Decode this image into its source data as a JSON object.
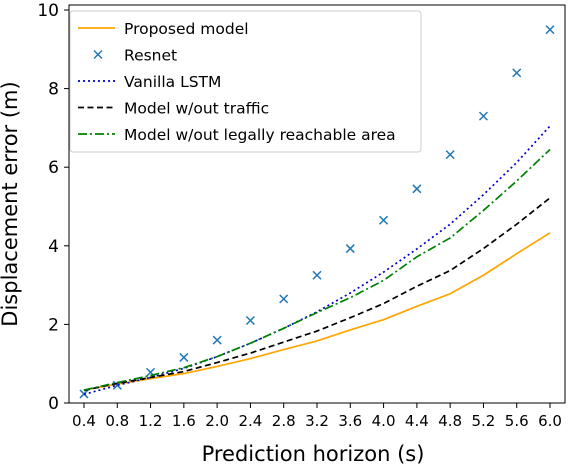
{
  "chart_data": {
    "type": "line",
    "xlabel": "Prediction horizon (s)",
    "ylabel": "Displacement error (m)",
    "x": [
      0.4,
      0.8,
      1.2,
      1.6,
      2.0,
      2.4,
      2.8,
      3.2,
      3.6,
      4.0,
      4.4,
      4.8,
      5.2,
      5.6,
      6.0
    ],
    "x_tick_labels": [
      "0.4",
      "0.8",
      "1.2",
      "1.6",
      "2.0",
      "2.4",
      "2.8",
      "3.2",
      "3.6",
      "4.0",
      "4.4",
      "4.8",
      "5.2",
      "5.6",
      "6.0"
    ],
    "ylim": [
      0,
      10
    ],
    "y_ticks": [
      0,
      2,
      4,
      6,
      8,
      10
    ],
    "y_tick_labels": [
      "0",
      "2",
      "4",
      "6",
      "8",
      "10"
    ],
    "grid": false,
    "legend_position": "top-left",
    "series": [
      {
        "name": "Proposed model",
        "style": "solid-line",
        "color": "#ffa500",
        "values": [
          0.33,
          0.48,
          0.62,
          0.75,
          0.93,
          1.13,
          1.36,
          1.58,
          1.86,
          2.12,
          2.46,
          2.78,
          3.25,
          3.8,
          4.33
        ]
      },
      {
        "name": "Resnet",
        "style": "x-marker",
        "color": "#1f77b4",
        "values": [
          0.23,
          0.45,
          0.78,
          1.16,
          1.6,
          2.1,
          2.65,
          3.25,
          3.93,
          4.65,
          5.45,
          6.32,
          7.3,
          8.4,
          9.5
        ]
      },
      {
        "name": "Vanilla LSTM",
        "style": "dotted-line",
        "color": "#0000cc",
        "values": [
          0.22,
          0.45,
          0.65,
          0.88,
          1.18,
          1.52,
          1.9,
          2.32,
          2.8,
          3.33,
          3.92,
          4.55,
          5.3,
          6.12,
          7.05
        ]
      },
      {
        "name": "Model w/out traffic",
        "style": "dashed-line",
        "color": "#000000",
        "values": [
          0.32,
          0.5,
          0.65,
          0.8,
          1.03,
          1.27,
          1.55,
          1.83,
          2.17,
          2.53,
          2.97,
          3.37,
          3.93,
          4.55,
          5.22
        ]
      },
      {
        "name": "Model w/out legally reachable area",
        "style": "dashdot-line",
        "color": "#008000",
        "values": [
          0.33,
          0.52,
          0.7,
          0.9,
          1.18,
          1.52,
          1.9,
          2.3,
          2.68,
          3.12,
          3.72,
          4.2,
          4.9,
          5.65,
          6.45
        ]
      }
    ]
  }
}
